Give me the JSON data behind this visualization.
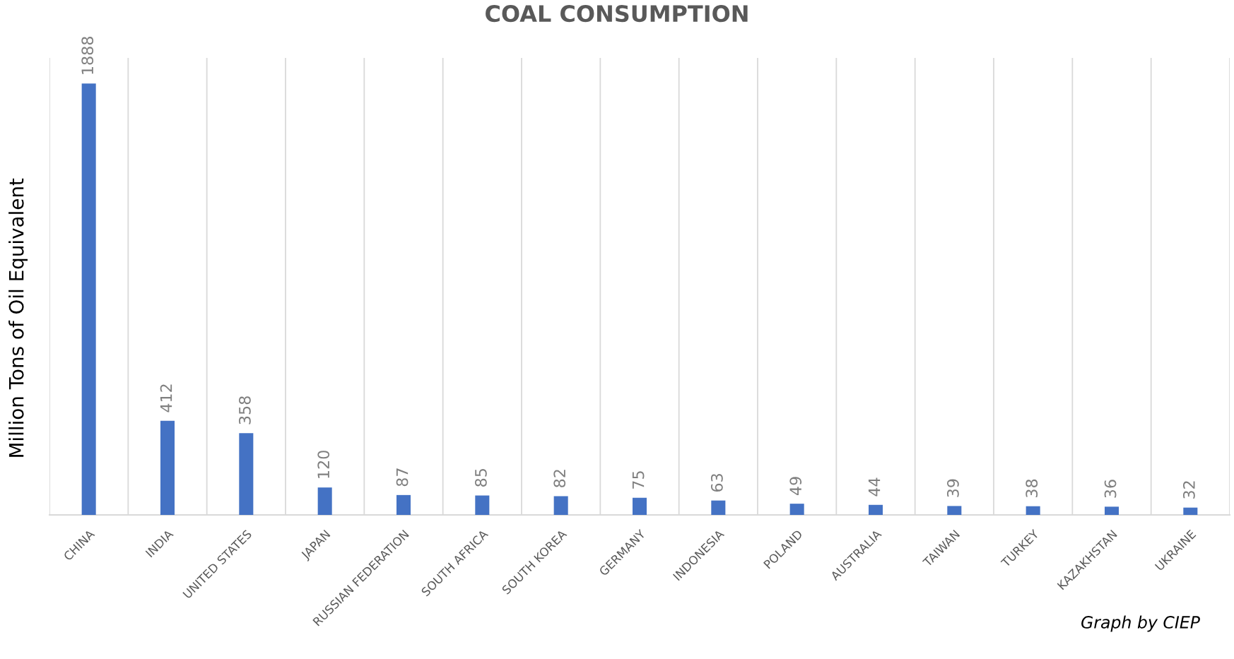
{
  "chart_data": {
    "type": "bar",
    "title": "COAL CONSUMPTION",
    "ylabel": "Million Tons of Oil Equivalent",
    "categories": [
      "CHINA",
      "INDIA",
      "UNITED STATES",
      "JAPAN",
      "RUSSIAN FEDERATION",
      "SOUTH AFRICA",
      "SOUTH KOREA",
      "GERMANY",
      "INDONESIA",
      "POLAND",
      "AUSTRALIA",
      "TAIWAN",
      "TURKEY",
      "KAZAKHSTAN",
      "UKRAINE"
    ],
    "values": [
      1888,
      412,
      358,
      120,
      87,
      85,
      82,
      75,
      63,
      49,
      44,
      39,
      38,
      36,
      32
    ],
    "color": "#4472c4",
    "ylim": [
      0,
      2000
    ],
    "data_labels": true,
    "grid": "x",
    "tick_labels": "x",
    "legend": false,
    "annotations": [
      "Graph by CIEP"
    ]
  }
}
